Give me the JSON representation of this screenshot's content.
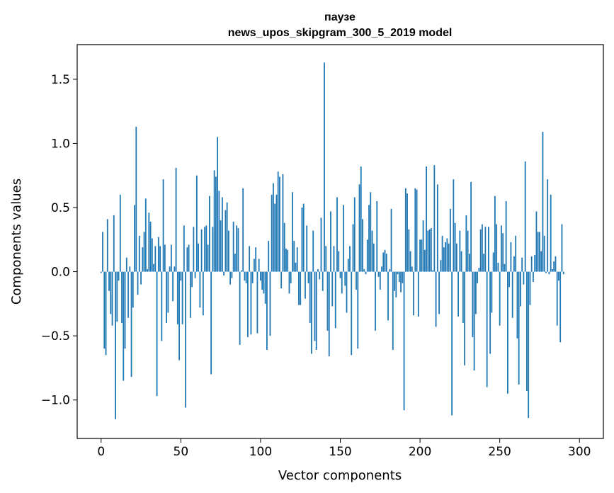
{
  "chart_data": {
    "type": "bar",
    "title_line1": "паузе",
    "title_line2": "news_upos_skipgram_300_5_2019 model",
    "xlabel": "Vector components",
    "ylabel": "Components values",
    "xlim": [
      -15,
      315
    ],
    "ylim": [
      -1.3,
      1.77
    ],
    "xticks": [
      0,
      50,
      100,
      150,
      200,
      250,
      300
    ],
    "xtick_labels": [
      "0",
      "50",
      "100",
      "150",
      "200",
      "250",
      "300"
    ],
    "yticks": [
      -1.0,
      -0.5,
      0.0,
      0.5,
      1.0,
      1.5
    ],
    "ytick_labels": [
      "−1.0",
      "−0.5",
      "0.0",
      "0.5",
      "1.0",
      "1.5"
    ],
    "bar_color": "#1f77b4",
    "values": [
      -0.01,
      0.31,
      -0.6,
      -0.65,
      0.41,
      -0.15,
      -0.33,
      -0.42,
      0.44,
      -1.15,
      -0.39,
      -0.07,
      0.6,
      -0.4,
      -0.85,
      -0.6,
      0.11,
      -0.36,
      0.04,
      -0.82,
      -0.28,
      0.52,
      1.13,
      -0.18,
      0.28,
      -0.1,
      0.19,
      0.31,
      0.57,
      0.02,
      0.46,
      0.39,
      0.26,
      0.06,
      0.2,
      -0.97,
      0.27,
      0.2,
      -0.54,
      0.72,
      0.21,
      -0.4,
      -0.32,
      0.04,
      0.21,
      -0.23,
      0.04,
      0.81,
      -0.41,
      -0.69,
      -0.07,
      -0.41,
      0.36,
      -1.06,
      0.19,
      0.21,
      -0.36,
      -0.12,
      0.35,
      -0.05,
      0.75,
      0.22,
      -0.28,
      0.33,
      -0.34,
      0.35,
      0.36,
      0.21,
      0.59,
      -0.8,
      0.35,
      0.79,
      0.74,
      1.05,
      0.63,
      0.4,
      0.58,
      -0.03,
      0.48,
      0.54,
      0.32,
      -0.1,
      -0.05,
      0.39,
      0.14,
      0.36,
      0.34,
      -0.57,
      0.01,
      0.65,
      -0.07,
      -0.09,
      -0.51,
      0.2,
      -0.49,
      -0.09,
      0.1,
      0.19,
      -0.48,
      0.1,
      -0.07,
      -0.14,
      -0.17,
      -0.25,
      -0.61,
      0.24,
      -0.5,
      0.6,
      0.69,
      0.53,
      0.6,
      0.78,
      0.74,
      -0.13,
      0.76,
      0.38,
      0.18,
      0.17,
      -0.17,
      -0.09,
      0.62,
      0.24,
      0.07,
      0.19,
      -0.26,
      -0.26,
      0.5,
      0.53,
      -0.21,
      0.36,
      -0.09,
      -0.4,
      -0.64,
      0.32,
      -0.54,
      -0.61,
      0.02,
      -0.06,
      0.42,
      -0.15,
      1.63,
      0.2,
      -0.46,
      -0.66,
      0.47,
      -0.27,
      0.2,
      -0.44,
      0.58,
      0.16,
      -0.05,
      -0.17,
      0.52,
      -0.11,
      -0.32,
      0.1,
      0.2,
      -0.65,
      0.37,
      0.58,
      -0.14,
      -0.6,
      0.68,
      0.82,
      0.41,
      0.02,
      -0.02,
      0.25,
      0.52,
      0.62,
      0.32,
      0.22,
      -0.46,
      0.55,
      -0.04,
      -0.14,
      0.04,
      0.15,
      0.17,
      0.14,
      -0.38,
      0.02,
      0.49,
      -0.61,
      -0.15,
      -0.2,
      -0.02,
      -0.08,
      -0.16,
      -0.09,
      -1.08,
      0.65,
      0.61,
      0.33,
      0.16,
      0.04,
      -0.34,
      0.65,
      0.64,
      -0.35,
      0.25,
      0.25,
      0.4,
      0.17,
      0.82,
      0.32,
      0.33,
      0.34,
      0.01,
      0.83,
      -0.43,
      0.68,
      -0.33,
      0.09,
      0.28,
      0.19,
      0.23,
      0.26,
      0.22,
      0.49,
      -1.12,
      0.72,
      0.38,
      0.22,
      -0.35,
      0.32,
      0.16,
      -0.4,
      -0.73,
      0.44,
      0.32,
      0.14,
      0.7,
      -0.51,
      -0.77,
      -0.33,
      -0.09,
      0.03,
      0.33,
      0.37,
      0.14,
      0.35,
      -0.9,
      0.35,
      -0.64,
      -0.32,
      0.15,
      0.59,
      0.37,
      0.07,
      -0.42,
      0.36,
      0.3,
      0.06,
      0.55,
      -0.95,
      -0.12,
      0.23,
      -0.36,
      0.12,
      0.28,
      -0.52,
      -0.88,
      -0.27,
      0.11,
      -0.1,
      0.86,
      -0.93,
      -1.14,
      -0.26,
      0.12,
      -0.08,
      0.13,
      0.47,
      0.31,
      0.31,
      0.16,
      1.09,
      0.28,
      -0.01,
      0.72,
      -0.02,
      0.6,
      0.02,
      0.08,
      0.12,
      -0.42,
      -0.07,
      -0.55,
      0.37,
      -0.02
    ]
  }
}
